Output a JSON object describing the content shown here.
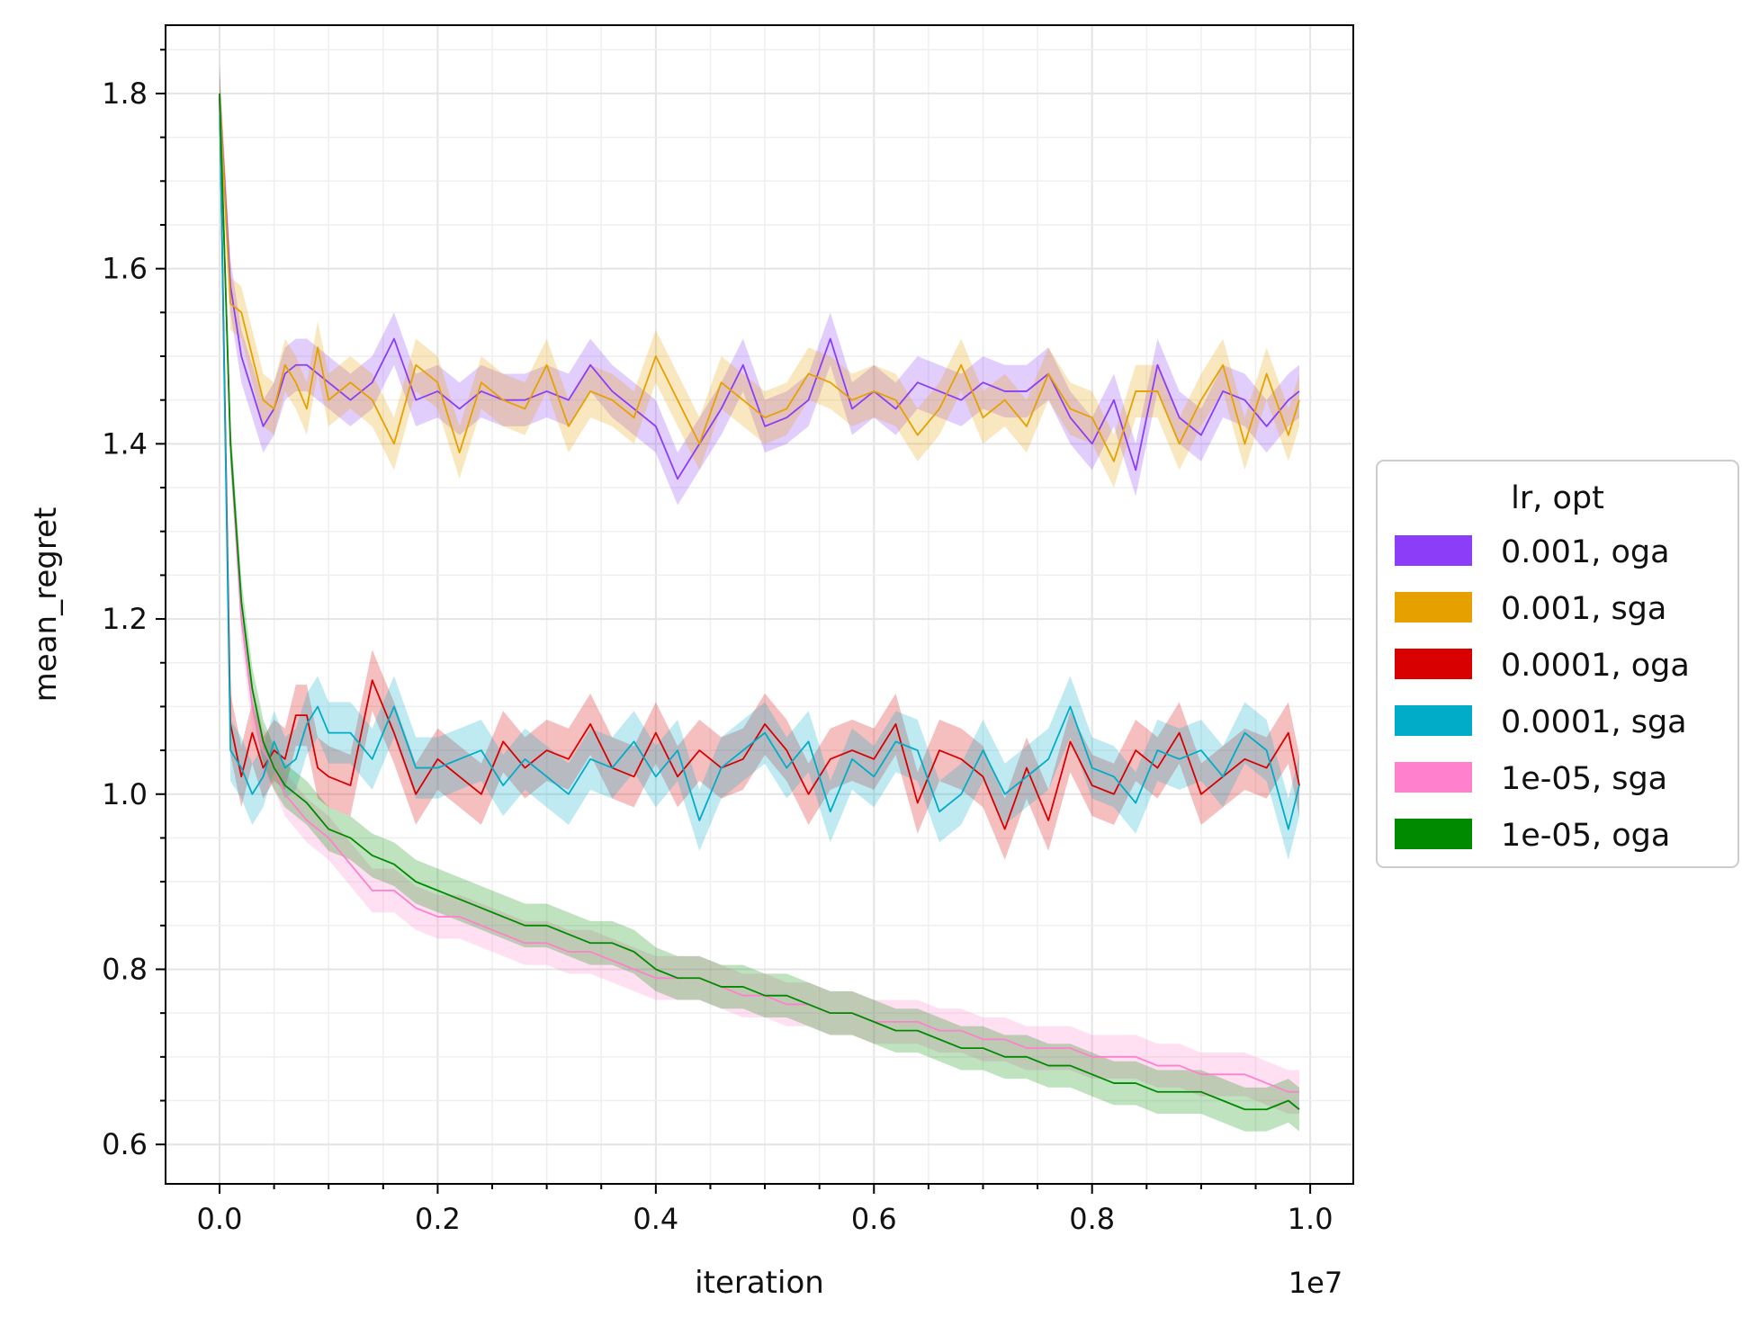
{
  "chart_data": {
    "type": "line",
    "xlabel": "iteration",
    "ylabel": "mean_regret",
    "x_offset_label": "1e7",
    "x_tick_labels": [
      "0.0",
      "0.2",
      "0.4",
      "0.6",
      "0.8",
      "1.0"
    ],
    "x_ticks": [
      0,
      0.2,
      0.4,
      0.6,
      0.8,
      1.0
    ],
    "y_tick_labels": [
      "0.6",
      "0.8",
      "1.0",
      "1.2",
      "1.4",
      "1.6",
      "1.8"
    ],
    "y_ticks": [
      0.6,
      0.8,
      1.0,
      1.2,
      1.4,
      1.6,
      1.8
    ],
    "xlim": [
      -0.0495,
      1.0395
    ],
    "ylim": [
      0.555,
      1.878
    ],
    "x_unit": "x 1e7 iterations",
    "grid": true,
    "legend": {
      "title": "lr, opt",
      "location": "right-outside",
      "entries": [
        "0.001, oga",
        "0.001, sga",
        "0.0001, oga",
        "0.0001, sga",
        "1e-05, sga",
        "1e-05, oga"
      ]
    },
    "series": [
      {
        "name": "0.001, oga",
        "color": "#8b3df7",
        "band": 0.03,
        "x_scaled": [
          0.0,
          0.01,
          0.02,
          0.03,
          0.04,
          0.05,
          0.06,
          0.07,
          0.08,
          0.09,
          0.1,
          0.12,
          0.14,
          0.16,
          0.18,
          0.2,
          0.22,
          0.24,
          0.26,
          0.28,
          0.3,
          0.32,
          0.34,
          0.36,
          0.38,
          0.4,
          0.42,
          0.44,
          0.46,
          0.48,
          0.5,
          0.52,
          0.54,
          0.56,
          0.58,
          0.6,
          0.62,
          0.64,
          0.66,
          0.68,
          0.7,
          0.72,
          0.74,
          0.76,
          0.78,
          0.8,
          0.82,
          0.84,
          0.86,
          0.88,
          0.9,
          0.92,
          0.94,
          0.96,
          0.98,
          0.99
        ],
        "values": [
          1.8,
          1.58,
          1.5,
          1.46,
          1.42,
          1.44,
          1.48,
          1.49,
          1.49,
          1.48,
          1.47,
          1.45,
          1.47,
          1.52,
          1.45,
          1.46,
          1.44,
          1.46,
          1.45,
          1.45,
          1.46,
          1.45,
          1.49,
          1.46,
          1.44,
          1.42,
          1.36,
          1.4,
          1.44,
          1.49,
          1.42,
          1.43,
          1.45,
          1.52,
          1.44,
          1.46,
          1.44,
          1.47,
          1.46,
          1.45,
          1.47,
          1.46,
          1.46,
          1.48,
          1.43,
          1.4,
          1.45,
          1.37,
          1.49,
          1.43,
          1.41,
          1.46,
          1.45,
          1.42,
          1.45,
          1.46
        ]
      },
      {
        "name": "0.001, sga",
        "color": "#e6a100",
        "band": 0.03,
        "x_scaled": [
          0.0,
          0.01,
          0.02,
          0.03,
          0.04,
          0.05,
          0.06,
          0.07,
          0.08,
          0.09,
          0.1,
          0.12,
          0.14,
          0.16,
          0.18,
          0.2,
          0.22,
          0.24,
          0.26,
          0.28,
          0.3,
          0.32,
          0.34,
          0.36,
          0.38,
          0.4,
          0.42,
          0.44,
          0.46,
          0.48,
          0.5,
          0.52,
          0.54,
          0.56,
          0.58,
          0.6,
          0.62,
          0.64,
          0.66,
          0.68,
          0.7,
          0.72,
          0.74,
          0.76,
          0.78,
          0.8,
          0.82,
          0.84,
          0.86,
          0.88,
          0.9,
          0.92,
          0.94,
          0.96,
          0.98,
          0.99
        ],
        "values": [
          1.8,
          1.56,
          1.55,
          1.5,
          1.45,
          1.44,
          1.49,
          1.47,
          1.44,
          1.51,
          1.45,
          1.47,
          1.45,
          1.4,
          1.49,
          1.47,
          1.39,
          1.47,
          1.45,
          1.44,
          1.49,
          1.42,
          1.46,
          1.45,
          1.43,
          1.5,
          1.45,
          1.4,
          1.47,
          1.45,
          1.43,
          1.44,
          1.48,
          1.47,
          1.45,
          1.46,
          1.45,
          1.41,
          1.44,
          1.49,
          1.43,
          1.45,
          1.42,
          1.48,
          1.44,
          1.43,
          1.38,
          1.46,
          1.46,
          1.4,
          1.45,
          1.49,
          1.4,
          1.48,
          1.41,
          1.45
        ]
      },
      {
        "name": "0.0001, oga",
        "color": "#d80000",
        "band": 0.035,
        "x_scaled": [
          0.0,
          0.01,
          0.02,
          0.03,
          0.04,
          0.05,
          0.06,
          0.07,
          0.08,
          0.09,
          0.1,
          0.12,
          0.14,
          0.16,
          0.18,
          0.2,
          0.22,
          0.24,
          0.26,
          0.28,
          0.3,
          0.32,
          0.34,
          0.36,
          0.38,
          0.4,
          0.42,
          0.44,
          0.46,
          0.48,
          0.5,
          0.52,
          0.54,
          0.56,
          0.58,
          0.6,
          0.62,
          0.64,
          0.66,
          0.68,
          0.7,
          0.72,
          0.74,
          0.76,
          0.78,
          0.8,
          0.82,
          0.84,
          0.86,
          0.88,
          0.9,
          0.92,
          0.94,
          0.96,
          0.98,
          0.99
        ],
        "values": [
          1.8,
          1.08,
          1.02,
          1.07,
          1.03,
          1.05,
          1.04,
          1.09,
          1.09,
          1.03,
          1.02,
          1.01,
          1.13,
          1.07,
          1.0,
          1.04,
          1.02,
          1.0,
          1.06,
          1.03,
          1.05,
          1.04,
          1.08,
          1.03,
          1.02,
          1.07,
          1.02,
          1.05,
          1.03,
          1.04,
          1.08,
          1.05,
          1.0,
          1.04,
          1.05,
          1.04,
          1.08,
          0.99,
          1.05,
          1.04,
          1.02,
          0.96,
          1.03,
          0.97,
          1.06,
          1.01,
          1.0,
          1.05,
          1.03,
          1.07,
          1.0,
          1.02,
          1.04,
          1.03,
          1.07,
          1.01
        ]
      },
      {
        "name": "0.0001, sga",
        "color": "#00acc8",
        "band": 0.035,
        "x_scaled": [
          0.0,
          0.01,
          0.02,
          0.03,
          0.04,
          0.05,
          0.06,
          0.07,
          0.08,
          0.09,
          0.1,
          0.12,
          0.14,
          0.16,
          0.18,
          0.2,
          0.22,
          0.24,
          0.26,
          0.28,
          0.3,
          0.32,
          0.34,
          0.36,
          0.38,
          0.4,
          0.42,
          0.44,
          0.46,
          0.48,
          0.5,
          0.52,
          0.54,
          0.56,
          0.58,
          0.6,
          0.62,
          0.64,
          0.66,
          0.68,
          0.7,
          0.72,
          0.74,
          0.76,
          0.78,
          0.8,
          0.82,
          0.84,
          0.86,
          0.88,
          0.9,
          0.92,
          0.94,
          0.96,
          0.98,
          0.99
        ],
        "values": [
          1.8,
          1.05,
          1.03,
          1.0,
          1.02,
          1.06,
          1.03,
          1.04,
          1.08,
          1.1,
          1.07,
          1.07,
          1.04,
          1.1,
          1.03,
          1.03,
          1.04,
          1.05,
          1.01,
          1.04,
          1.02,
          1.0,
          1.04,
          1.03,
          1.06,
          1.02,
          1.05,
          0.97,
          1.03,
          1.05,
          1.07,
          1.03,
          1.06,
          0.98,
          1.04,
          1.02,
          1.06,
          1.05,
          0.98,
          1.0,
          1.05,
          1.0,
          1.02,
          1.04,
          1.1,
          1.03,
          1.02,
          0.99,
          1.05,
          1.04,
          1.05,
          1.02,
          1.07,
          1.05,
          0.96,
          1.01
        ]
      },
      {
        "name": "1e-05, sga",
        "color": "#ff80cc",
        "band": 0.025,
        "x_scaled": [
          0.0,
          0.01,
          0.02,
          0.03,
          0.04,
          0.05,
          0.06,
          0.08,
          0.1,
          0.12,
          0.14,
          0.16,
          0.18,
          0.2,
          0.22,
          0.24,
          0.26,
          0.28,
          0.3,
          0.32,
          0.34,
          0.36,
          0.38,
          0.4,
          0.42,
          0.44,
          0.46,
          0.48,
          0.5,
          0.52,
          0.54,
          0.56,
          0.58,
          0.6,
          0.62,
          0.64,
          0.66,
          0.68,
          0.7,
          0.72,
          0.74,
          0.76,
          0.78,
          0.8,
          0.82,
          0.84,
          0.86,
          0.88,
          0.9,
          0.92,
          0.94,
          0.96,
          0.98,
          0.99
        ],
        "values": [
          1.8,
          1.4,
          1.2,
          1.1,
          1.05,
          1.03,
          1.0,
          0.97,
          0.95,
          0.92,
          0.89,
          0.89,
          0.87,
          0.86,
          0.86,
          0.85,
          0.84,
          0.83,
          0.83,
          0.82,
          0.82,
          0.81,
          0.8,
          0.79,
          0.79,
          0.79,
          0.78,
          0.77,
          0.77,
          0.76,
          0.76,
          0.75,
          0.75,
          0.74,
          0.74,
          0.74,
          0.73,
          0.73,
          0.72,
          0.72,
          0.71,
          0.71,
          0.71,
          0.7,
          0.7,
          0.7,
          0.69,
          0.69,
          0.68,
          0.68,
          0.68,
          0.67,
          0.66,
          0.66
        ]
      },
      {
        "name": "1e-05, oga",
        "color": "#008a00",
        "band": 0.025,
        "x_scaled": [
          0.0,
          0.01,
          0.02,
          0.03,
          0.04,
          0.05,
          0.06,
          0.08,
          0.1,
          0.12,
          0.14,
          0.16,
          0.18,
          0.2,
          0.22,
          0.24,
          0.26,
          0.28,
          0.3,
          0.32,
          0.34,
          0.36,
          0.38,
          0.4,
          0.42,
          0.44,
          0.46,
          0.48,
          0.5,
          0.52,
          0.54,
          0.56,
          0.58,
          0.6,
          0.62,
          0.64,
          0.66,
          0.68,
          0.7,
          0.72,
          0.74,
          0.76,
          0.78,
          0.8,
          0.82,
          0.84,
          0.86,
          0.88,
          0.9,
          0.92,
          0.94,
          0.96,
          0.98,
          0.99
        ],
        "values": [
          1.8,
          1.4,
          1.22,
          1.12,
          1.06,
          1.03,
          1.01,
          0.99,
          0.96,
          0.95,
          0.93,
          0.92,
          0.9,
          0.89,
          0.88,
          0.87,
          0.86,
          0.85,
          0.85,
          0.84,
          0.83,
          0.83,
          0.82,
          0.8,
          0.79,
          0.79,
          0.78,
          0.78,
          0.77,
          0.77,
          0.76,
          0.75,
          0.75,
          0.74,
          0.73,
          0.73,
          0.72,
          0.71,
          0.71,
          0.7,
          0.7,
          0.69,
          0.69,
          0.68,
          0.67,
          0.67,
          0.66,
          0.66,
          0.66,
          0.65,
          0.64,
          0.64,
          0.65,
          0.64
        ]
      }
    ]
  }
}
